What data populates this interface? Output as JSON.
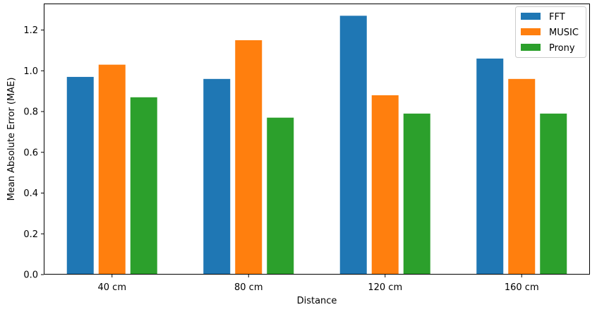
{
  "chart_data": {
    "type": "bar",
    "categories": [
      "40 cm",
      "80 cm",
      "120 cm",
      "160 cm"
    ],
    "series": [
      {
        "name": "FFT",
        "color": "#1f77b4",
        "values": [
          0.97,
          0.96,
          1.27,
          1.06
        ]
      },
      {
        "name": "MUSIC",
        "color": "#ff7f0e",
        "values": [
          1.03,
          1.15,
          0.88,
          0.96
        ]
      },
      {
        "name": "Prony",
        "color": "#2ca02c",
        "values": [
          0.87,
          0.77,
          0.79,
          0.79
        ]
      }
    ],
    "title": "",
    "xlabel": "Distance",
    "ylabel": "Mean Absolute Error (MAE)",
    "ylim": [
      0,
      1.33
    ],
    "yticks": [
      0.0,
      0.2,
      0.4,
      0.6,
      0.8,
      1.0,
      1.2
    ],
    "ytick_labels": [
      "0.0",
      "0.2",
      "0.4",
      "0.6",
      "0.8",
      "1.0",
      "1.2"
    ],
    "grid": false,
    "legend_position": "top-right"
  }
}
